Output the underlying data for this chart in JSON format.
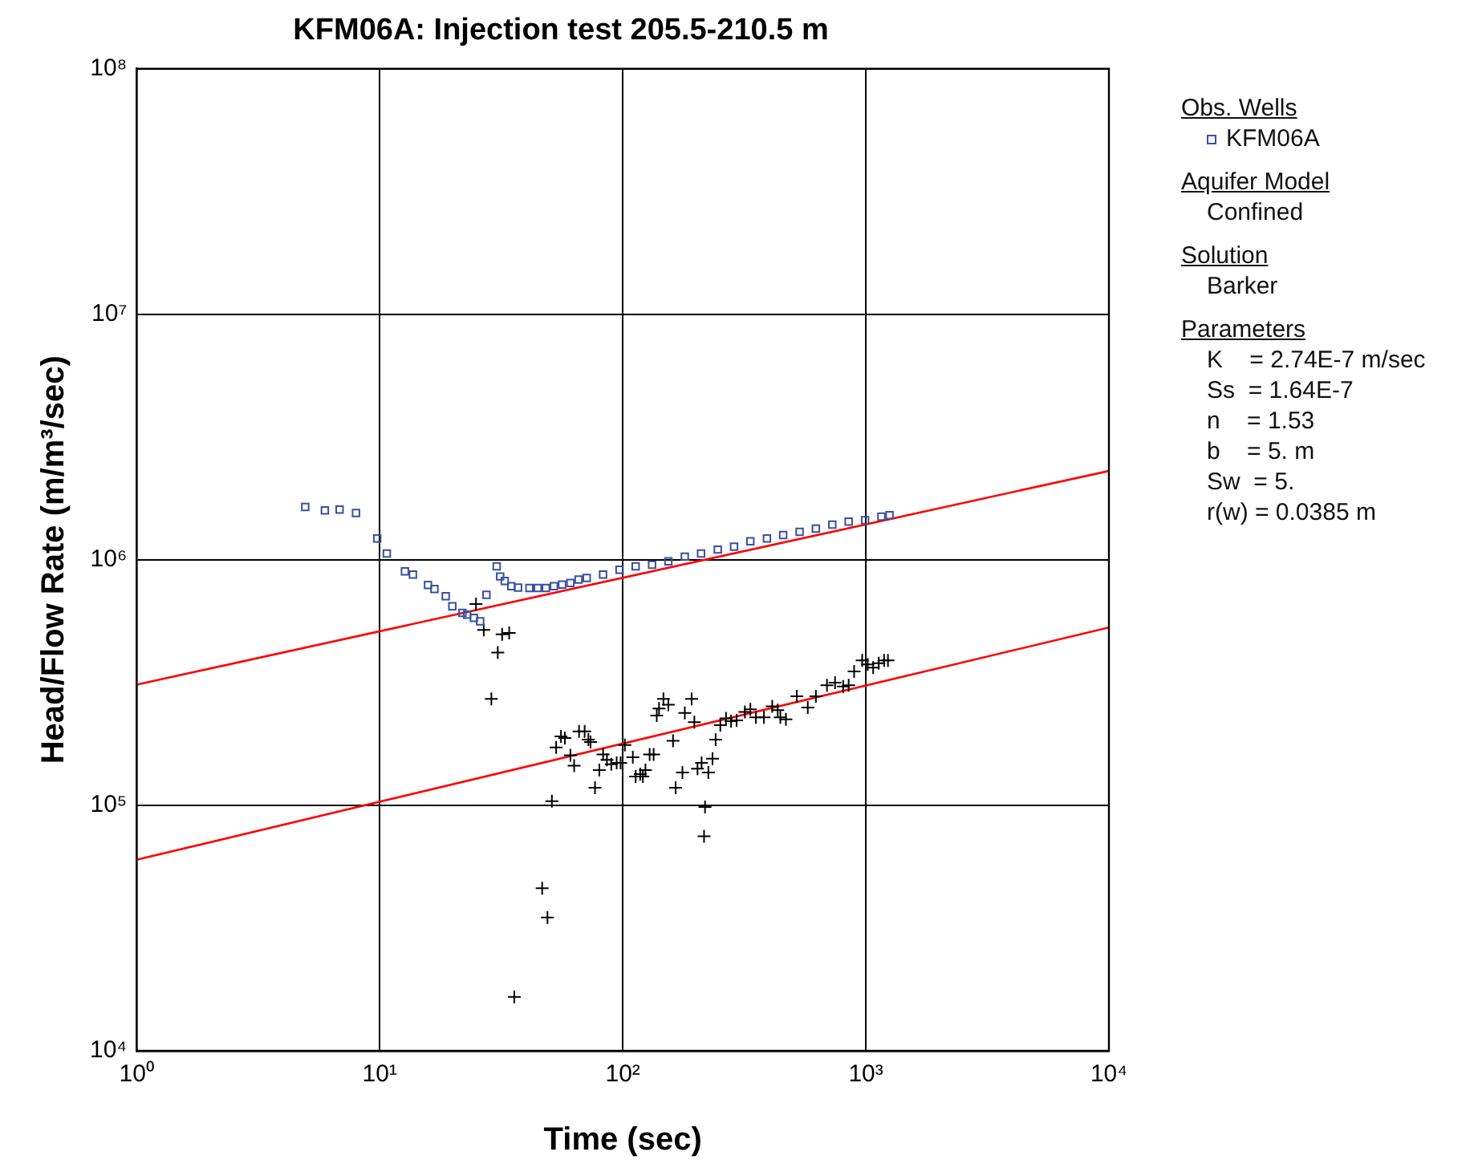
{
  "chart_data": {
    "type": "scatter",
    "title": "KFM06A: Injection test 205.5-210.5 m",
    "xlabel": "Time (sec)",
    "ylabel": "Head/Flow Rate (m/m³/sec)",
    "log": "xy",
    "grid": true,
    "legend": "right",
    "legend_title": "Obs. Wells",
    "xlim": [
      1,
      10000
    ],
    "ylim": [
      10000,
      100000000
    ],
    "xticks": [
      {
        "value": 1,
        "label": "10⁰"
      },
      {
        "value": 10,
        "label": "10¹"
      },
      {
        "value": 100,
        "label": "10²"
      },
      {
        "value": 1000,
        "label": "10³"
      },
      {
        "value": 10000,
        "label": "10⁴"
      }
    ],
    "yticks": [
      {
        "value": 10000,
        "label": "10⁴"
      },
      {
        "value": 100000,
        "label": "10⁵"
      },
      {
        "value": 1000000,
        "label": "10⁶"
      },
      {
        "value": 10000000,
        "label": "10⁷"
      },
      {
        "value": 100000000,
        "label": "10⁸"
      }
    ],
    "series": [
      {
        "name": "KFM06A",
        "type": "scatter",
        "marker": "square",
        "color": "#3a4fa0",
        "x": [
          4.94,
          5.95,
          6.84,
          7.99,
          9.77,
          10.7,
          12.7,
          13.7,
          15.8,
          16.8,
          18.7,
          19.9,
          21.9,
          22.9,
          24.4,
          25.9,
          27.5,
          30.3,
          31.3,
          32.7,
          34.8,
          37.1,
          41.3,
          44.7,
          48.3,
          52.1,
          56.3,
          60.9,
          65.8,
          71.1,
          83,
          97,
          113,
          132,
          154,
          180,
          210,
          246,
          287,
          335,
          392,
          457,
          534,
          623,
          728,
          850,
          993,
          1159,
          1252
        ],
        "values": [
          1640000,
          1590000,
          1600000,
          1550000,
          1220000,
          1060000,
          897000,
          870000,
          790000,
          760000,
          710000,
          647000,
          608000,
          598000,
          580000,
          562000,
          720000,
          940000,
          855000,
          820000,
          780000,
          770000,
          768000,
          768000,
          768000,
          780000,
          792000,
          804000,
          830000,
          843000,
          870000,
          910000,
          940000,
          955000,
          985000,
          1030000,
          1060000,
          1100000,
          1130000,
          1190000,
          1220000,
          1260000,
          1300000,
          1340000,
          1390000,
          1430000,
          1450000,
          1500000,
          1520000
        ]
      },
      {
        "type": "scatter",
        "marker": "cross",
        "color": "#000000",
        "x": [
          24.9,
          26.8,
          31.9,
          34.1,
          30.6,
          28.8,
          51.1,
          46.6,
          49.0,
          35.8,
          53.2,
          55.7,
          57.8,
          60.9,
          63.1,
          66.1,
          69.7,
          72.2,
          73.7,
          76.9,
          80.1,
          83.0,
          86.1,
          89.7,
          94.4,
          98.0,
          102,
          110,
          113,
          118,
          121,
          124,
          129,
          134,
          138,
          141,
          147,
          154,
          161,
          165,
          176,
          180,
          192,
          197,
          203,
          211,
          218,
          216,
          225,
          234,
          241,
          252,
          266,
          279,
          294,
          318,
          335,
          353,
          381,
          412,
          445,
          434,
          469,
          520,
          577,
          623,
          692,
          747,
          807,
          850,
          895,
          966,
          1018,
          1072,
          1130,
          1189,
          1233
        ],
        "values": [
          660000,
          518000,
          497000,
          504000,
          419000,
          271000,
          104000,
          46000,
          34900,
          16600,
          172000,
          191000,
          188000,
          160000,
          145000,
          200000,
          200000,
          185000,
          181000,
          118000,
          139000,
          161000,
          153000,
          147000,
          149000,
          149000,
          176000,
          157000,
          131000,
          134000,
          131000,
          139000,
          161000,
          161000,
          232000,
          248000,
          271000,
          257000,
          183000,
          118000,
          136000,
          238000,
          271000,
          218000,
          141000,
          149000,
          98500,
          74800,
          136000,
          155000,
          185000,
          212000,
          226000,
          220000,
          222000,
          240000,
          246000,
          228000,
          228000,
          253000,
          228000,
          244000,
          224000,
          278000,
          250000,
          278000,
          308000,
          316000,
          305000,
          308000,
          351000,
          389000,
          375000,
          364000,
          379000,
          389000,
          389000
        ]
      },
      {
        "type": "line",
        "marker": "none",
        "color": "#ff0000",
        "x": [
          1,
          10000
        ],
        "values": [
          310000,
          2300000
        ]
      },
      {
        "type": "line",
        "marker": "none",
        "color": "#ff0000",
        "x": [
          1,
          10000
        ],
        "values": [
          60000,
          530000
        ]
      }
    ],
    "annotations": [
      "Aquifer Model",
      "Confined",
      "Solution",
      "Barker",
      "Parameters",
      "K    = 2.74E-7 m/sec",
      "Ss  = 1.64E-7",
      "n    = 1.53",
      "b    = 5. m",
      "Sw  = 5.",
      "r(w) = 0.0385 m"
    ]
  }
}
